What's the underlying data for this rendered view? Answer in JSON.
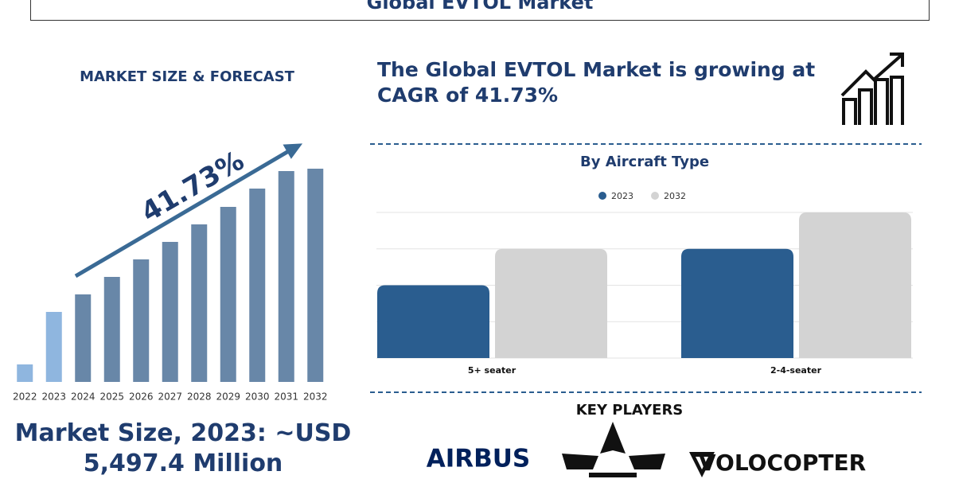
{
  "header": {
    "title": "Global EVTOL Market"
  },
  "cagr_text": "The Global EVTOL Market is growing at CAGR of 41.73%",
  "market_size": "Market Size, 2023: ~USD 5,497.4 Million",
  "key_players": {
    "title": "KEY PLAYERS",
    "logos": [
      "AIRBUS",
      "VOLOCOPTER"
    ]
  },
  "chart_data": [
    {
      "type": "bar",
      "title": "MARKET SIZE & FORECAST",
      "annotation": "41.73%",
      "categories": [
        "2022",
        "2023",
        "2024",
        "2025",
        "2026",
        "2027",
        "2028",
        "2029",
        "2030",
        "2031",
        "2032"
      ],
      "values": [
        22,
        88,
        110,
        132,
        154,
        176,
        198,
        220,
        243,
        265,
        268
      ],
      "colors": [
        "#8fb6df",
        "#8fb6df",
        "#6887a8",
        "#6887a8",
        "#6887a8",
        "#6887a8",
        "#6887a8",
        "#6887a8",
        "#6887a8",
        "#6887a8",
        "#6887a8"
      ]
    },
    {
      "type": "grouped-bar",
      "title": "By Aircraft Type",
      "categories": [
        "5+ seater",
        "2-4-seater"
      ],
      "series": [
        {
          "name": "2023",
          "color": "#2a5d8f",
          "values": [
            2,
            3
          ]
        },
        {
          "name": "2032",
          "color": "#d3d3d3",
          "values": [
            3,
            4
          ]
        }
      ],
      "ylim": [
        0,
        4
      ],
      "yticks": [
        0,
        1,
        2,
        3,
        4
      ],
      "grid": true
    }
  ]
}
